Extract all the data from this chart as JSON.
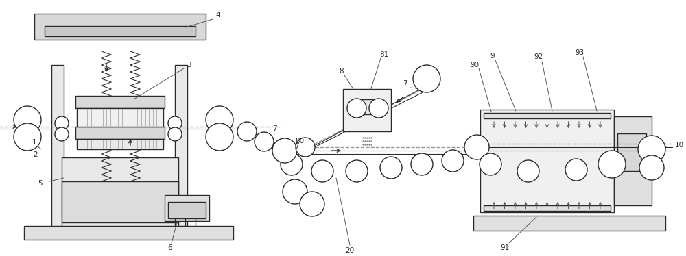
{
  "bg_color": "#ffffff",
  "lc": "#2a2a2a",
  "gray1": "#cccccc",
  "gray2": "#dddddd",
  "gray3": "#eeeeee",
  "dashed": "#aaaaaa"
}
